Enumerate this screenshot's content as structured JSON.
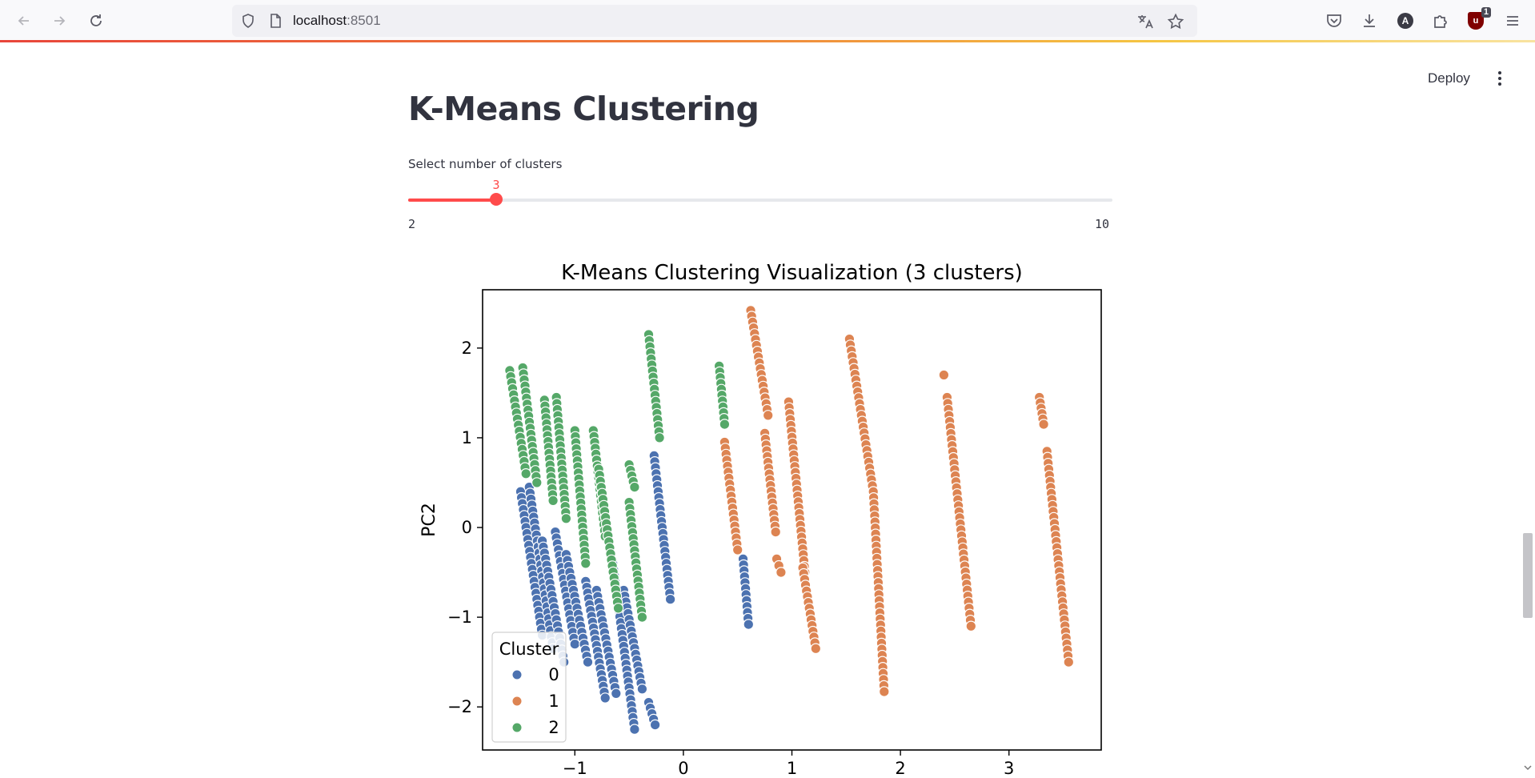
{
  "browser": {
    "url_host": "localhost",
    "url_port": ":8501",
    "extension_badge": "1",
    "account_letter": "A"
  },
  "app": {
    "deploy_label": "Deploy",
    "title": "K-Means Clustering",
    "slider": {
      "label": "Select number of clusters",
      "value": 3,
      "min": 2,
      "max": 10,
      "accent": "#ff4b4b"
    }
  },
  "chart_data": {
    "type": "scatter",
    "title": "K-Means Clustering Visualization (3 clusters)",
    "xlabel": "",
    "ylabel": "PC2",
    "xlim": [
      -1.85,
      3.85
    ],
    "ylim": [
      -2.48,
      2.65
    ],
    "xticks": [
      -1,
      0,
      1,
      2,
      3
    ],
    "yticks": [
      -2,
      -1,
      0,
      1,
      2
    ],
    "xtick_labels": [
      "−1",
      "0",
      "1",
      "2",
      "3"
    ],
    "ytick_labels": [
      "−2",
      "−1",
      "0",
      "1",
      "2"
    ],
    "grid": false,
    "legend": {
      "title": "Cluster",
      "placement": "lower-left"
    },
    "series": [
      {
        "name": "0",
        "color": "#4c72b0",
        "segments": [
          [
            -1.5,
            0.4,
            -1.3,
            -1.2
          ],
          [
            -1.42,
            0.45,
            -1.2,
            -1.35
          ],
          [
            -1.3,
            -0.15,
            -1.1,
            -1.5
          ],
          [
            -1.18,
            -0.05,
            -1.0,
            -1.3
          ],
          [
            -1.08,
            -0.3,
            -0.88,
            -1.5
          ],
          [
            -0.9,
            -0.6,
            -0.72,
            -1.9
          ],
          [
            -0.8,
            -0.7,
            -0.62,
            -1.85
          ],
          [
            -0.65,
            -0.4,
            -0.45,
            -2.25
          ],
          [
            -0.55,
            -0.7,
            -0.38,
            -1.8
          ],
          [
            -0.27,
            0.8,
            -0.12,
            -0.8
          ],
          [
            -0.32,
            -1.95,
            -0.26,
            -2.2
          ],
          [
            0.55,
            -0.35,
            0.6,
            -1.08
          ]
        ]
      },
      {
        "name": "1",
        "color": "#dd8452",
        "segments": [
          [
            0.38,
            0.95,
            0.5,
            -0.25
          ],
          [
            0.62,
            2.42,
            0.78,
            1.25
          ],
          [
            0.75,
            1.05,
            0.85,
            -0.05
          ],
          [
            0.86,
            -0.35,
            0.9,
            -0.5
          ],
          [
            0.97,
            1.4,
            1.12,
            -0.5
          ],
          [
            1.1,
            -0.45,
            1.22,
            -1.35
          ],
          [
            1.53,
            2.1,
            1.75,
            0.4
          ],
          [
            1.75,
            0.4,
            1.85,
            -1.83
          ],
          [
            2.4,
            1.7,
            2.4,
            1.7
          ],
          [
            2.43,
            1.45,
            2.65,
            -1.1
          ],
          [
            3.28,
            1.45,
            3.32,
            1.15
          ],
          [
            3.35,
            0.85,
            3.55,
            -1.5
          ]
        ]
      },
      {
        "name": "2",
        "color": "#55a868",
        "segments": [
          [
            -1.6,
            1.75,
            -1.45,
            0.6
          ],
          [
            -1.48,
            1.78,
            -1.35,
            0.5
          ],
          [
            -1.28,
            1.42,
            -1.2,
            0.3
          ],
          [
            -1.17,
            1.45,
            -1.08,
            0.1
          ],
          [
            -1.0,
            1.08,
            -0.9,
            -0.4
          ],
          [
            -0.83,
            1.08,
            -0.72,
            -0.1
          ],
          [
            -0.78,
            0.65,
            -0.6,
            -0.9
          ],
          [
            -0.5,
            0.7,
            -0.45,
            0.45
          ],
          [
            -0.5,
            0.28,
            -0.38,
            -1.0
          ],
          [
            -0.32,
            2.15,
            -0.22,
            1.0
          ],
          [
            0.33,
            1.8,
            0.38,
            1.15
          ]
        ]
      }
    ]
  }
}
